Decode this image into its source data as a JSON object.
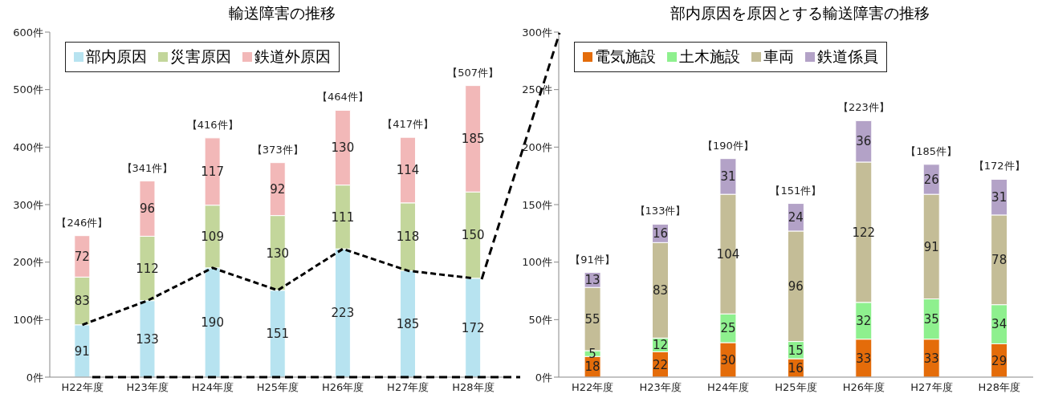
{
  "chart_data": [
    {
      "type": "bar",
      "title": "輸送障害の推移",
      "stacked": true,
      "categories": [
        "H22年度",
        "H23年度",
        "H24年度",
        "H25年度",
        "H26年度",
        "H27年度",
        "H28年度"
      ],
      "series": [
        {
          "name": "部内原因",
          "color": "#b7e3f0",
          "values": [
            91,
            133,
            190,
            151,
            223,
            185,
            172
          ]
        },
        {
          "name": "災害原因",
          "color": "#c3d69b",
          "values": [
            83,
            112,
            109,
            130,
            111,
            118,
            150
          ]
        },
        {
          "name": "鉄道外原因",
          "color": "#f2b8b8",
          "values": [
            72,
            96,
            117,
            92,
            130,
            114,
            185
          ]
        },
        {
          "type": "line",
          "color": "#000000",
          "line_style": "dashed",
          "marker": "none",
          "values": [
            91,
            133,
            190,
            151,
            223,
            185,
            172
          ],
          "value_labels": [
            null,
            null,
            null,
            null,
            null,
            null,
            null
          ]
        }
      ],
      "ylim": [
        0,
        600
      ],
      "yticks": [
        {
          "value": 0,
          "label": "0件"
        },
        {
          "value": 100,
          "label": "100件"
        },
        {
          "value": 200,
          "label": "200件"
        },
        {
          "value": 300,
          "label": "300件"
        },
        {
          "value": 400,
          "label": "400件"
        },
        {
          "value": 500,
          "label": "500件"
        },
        {
          "value": 600,
          "label": "600件"
        }
      ],
      "data_labels": true,
      "totals": [
        "【246件】",
        "【341件】",
        "【416件】",
        "【373件】",
        "【464件】",
        "【417件】",
        "【507件】"
      ],
      "legend": "top left"
    },
    {
      "type": "bar",
      "title": "部内原因を原因とする輸送障害の推移",
      "stacked": true,
      "categories": [
        "H22年度",
        "H23年度",
        "H24年度",
        "H25年度",
        "H26年度",
        "H27年度",
        "H28年度"
      ],
      "series": [
        {
          "name": "電気施設",
          "color": "#e46c0a",
          "values": [
            18,
            22,
            30,
            16,
            33,
            33,
            29
          ]
        },
        {
          "name": "土木施設",
          "color": "#8ef08e",
          "values": [
            5,
            12,
            25,
            15,
            32,
            35,
            34
          ]
        },
        {
          "name": "車両",
          "color": "#c4bd97",
          "values": [
            55,
            83,
            104,
            96,
            122,
            91,
            78
          ]
        },
        {
          "name": "鉄道係員",
          "color": "#b3a2c7",
          "values": [
            13,
            16,
            31,
            24,
            36,
            26,
            31
          ]
        }
      ],
      "ylim": [
        0,
        300
      ],
      "yticks": [
        {
          "value": 0,
          "label": "0件"
        },
        {
          "value": 50,
          "label": "50件"
        },
        {
          "value": 100,
          "label": "100件"
        },
        {
          "value": 150,
          "label": "150件"
        },
        {
          "value": 200,
          "label": "200件"
        },
        {
          "value": 250,
          "label": "250件"
        },
        {
          "value": 300,
          "label": "300件"
        }
      ],
      "data_labels": true,
      "totals": [
        "【91件】",
        "【133件】",
        "【190件】",
        "【151件】",
        "【223件】",
        "【185件】",
        "【172件】"
      ],
      "legend": "top left"
    }
  ]
}
